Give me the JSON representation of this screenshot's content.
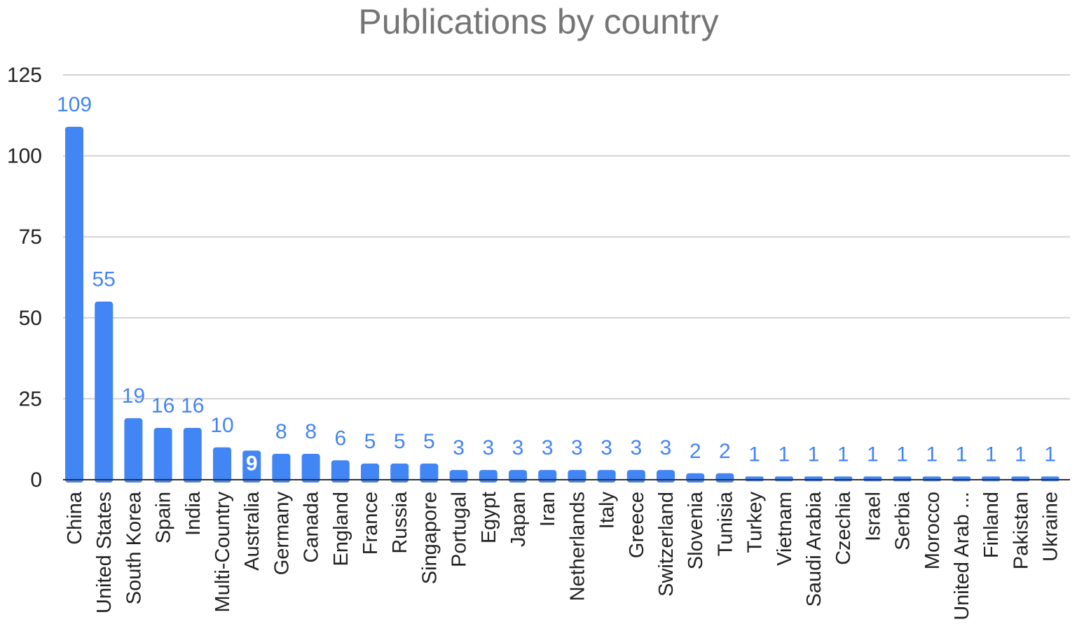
{
  "chart_data": {
    "type": "bar",
    "title": "Publications by country",
    "xlabel": "",
    "ylabel": "",
    "ylim": [
      0,
      125
    ],
    "yticks": [
      0,
      25,
      50,
      75,
      100,
      125
    ],
    "grid": true,
    "legend": "none",
    "bar_color": "#4285f4",
    "label_color": "#4285f4",
    "inside_label_color": "#ffffff",
    "categories": [
      "China",
      "United States",
      "South Korea",
      "Spain",
      "India",
      "Multi-Country",
      "Australia",
      "Germany",
      "Canada",
      "England",
      "France",
      "Russia",
      "Singapore",
      "Portugal",
      "Egypt",
      "Japan",
      "Iran",
      "Netherlands",
      "Italy",
      "Greece",
      "Switzerland",
      "Slovenia",
      "Tunisia",
      "Turkey",
      "Vietnam",
      "Saudi Arabia",
      "Czechia",
      "Israel",
      "Serbia",
      "Morocco",
      "United Arab ...",
      "Finland",
      "Pakistan",
      "Ukraine"
    ],
    "values": [
      109,
      55,
      19,
      16,
      16,
      10,
      9,
      8,
      8,
      6,
      5,
      5,
      5,
      3,
      3,
      3,
      3,
      3,
      3,
      3,
      3,
      2,
      2,
      1,
      1,
      1,
      1,
      1,
      1,
      1,
      1,
      1,
      1,
      1
    ]
  }
}
